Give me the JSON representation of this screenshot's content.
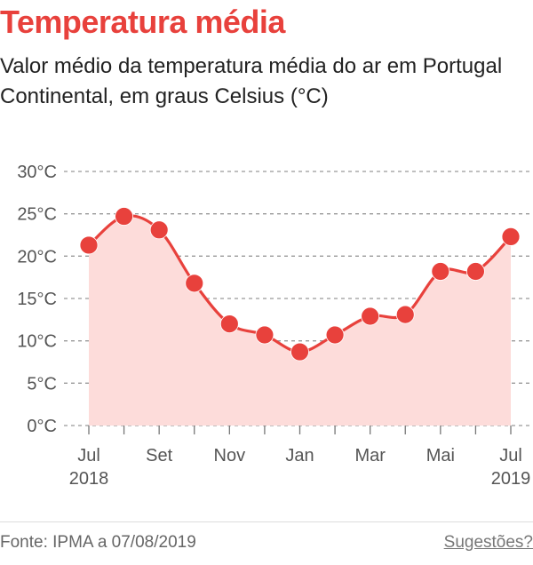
{
  "title": "Temperatura média",
  "subtitle": "Valor médio da temperatura média do ar em Portugal Continental, em graus Celsius (°C)",
  "footer": {
    "source": "Fonte: IPMA a 07/08/2019",
    "suggestions": "Sugestões?"
  },
  "colors": {
    "accent": "#e8413c",
    "area_fill": "#fddcda",
    "grid": "#999999",
    "text": "#222222",
    "axis_text": "#555555"
  },
  "chart_data": {
    "type": "area",
    "x": [
      "2018-07",
      "2018-08",
      "2018-09",
      "2018-10",
      "2018-11",
      "2018-12",
      "2019-01",
      "2019-02",
      "2019-03",
      "2019-04",
      "2019-05",
      "2019-06",
      "2019-07"
    ],
    "series": [
      {
        "values": [
          21.3,
          24.7,
          23.1,
          16.8,
          12.0,
          10.7,
          8.7,
          10.7,
          12.9,
          13.1,
          18.2,
          18.2,
          22.3
        ]
      }
    ],
    "y_ticks": [
      "0°C",
      "5°C",
      "10°C",
      "15°C",
      "20°C",
      "25°C",
      "30°C"
    ],
    "y_tick_values": [
      0,
      5,
      10,
      15,
      20,
      25,
      30
    ],
    "x_tick_labels": [
      "Jul\n2018",
      "",
      "Set",
      "",
      "Nov",
      "",
      "Jan",
      "",
      "Mar",
      "",
      "Mai",
      "",
      "Jul\n2019"
    ],
    "ylim": [
      0,
      30
    ],
    "xlabel": "",
    "ylabel": "",
    "grid": true,
    "grid_style": "dashed",
    "curve": "smooth",
    "markers": true
  }
}
